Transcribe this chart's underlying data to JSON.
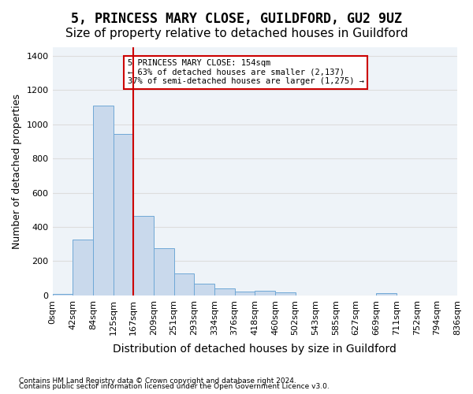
{
  "title": "5, PRINCESS MARY CLOSE, GUILDFORD, GU2 9UZ",
  "subtitle": "Size of property relative to detached houses in Guildford",
  "xlabel": "Distribution of detached houses by size in Guildford",
  "ylabel": "Number of detached properties",
  "footnote1": "Contains HM Land Registry data © Crown copyright and database right 2024.",
  "footnote2": "Contains public sector information licensed under the Open Government Licence v3.0.",
  "bin_labels": [
    "0sqm",
    "42sqm",
    "84sqm",
    "125sqm",
    "167sqm",
    "209sqm",
    "251sqm",
    "293sqm",
    "334sqm",
    "376sqm",
    "418sqm",
    "460sqm",
    "502sqm",
    "543sqm",
    "585sqm",
    "627sqm",
    "669sqm",
    "711sqm",
    "752sqm",
    "794sqm",
    "836sqm"
  ],
  "bar_values": [
    10,
    325,
    1110,
    945,
    465,
    275,
    130,
    70,
    40,
    22,
    25,
    20,
    0,
    0,
    0,
    0,
    15,
    0,
    0,
    0
  ],
  "bar_color": "#c9d9ec",
  "bar_edge_color": "#6fa8d6",
  "red_line_x": 4,
  "annotation_text": "5 PRINCESS MARY CLOSE: 154sqm\n← 63% of detached houses are smaller (2,137)\n37% of semi-detached houses are larger (1,275) →",
  "annotation_box_color": "#ffffff",
  "annotation_box_edge": "#cc0000",
  "red_line_color": "#cc0000",
  "ylim": [
    0,
    1450
  ],
  "yticks": [
    0,
    200,
    400,
    600,
    800,
    1000,
    1200,
    1400
  ],
  "grid_color": "#dddddd",
  "bg_color": "#eef3f8",
  "title_fontsize": 12,
  "subtitle_fontsize": 11,
  "axis_label_fontsize": 9,
  "tick_fontsize": 8
}
